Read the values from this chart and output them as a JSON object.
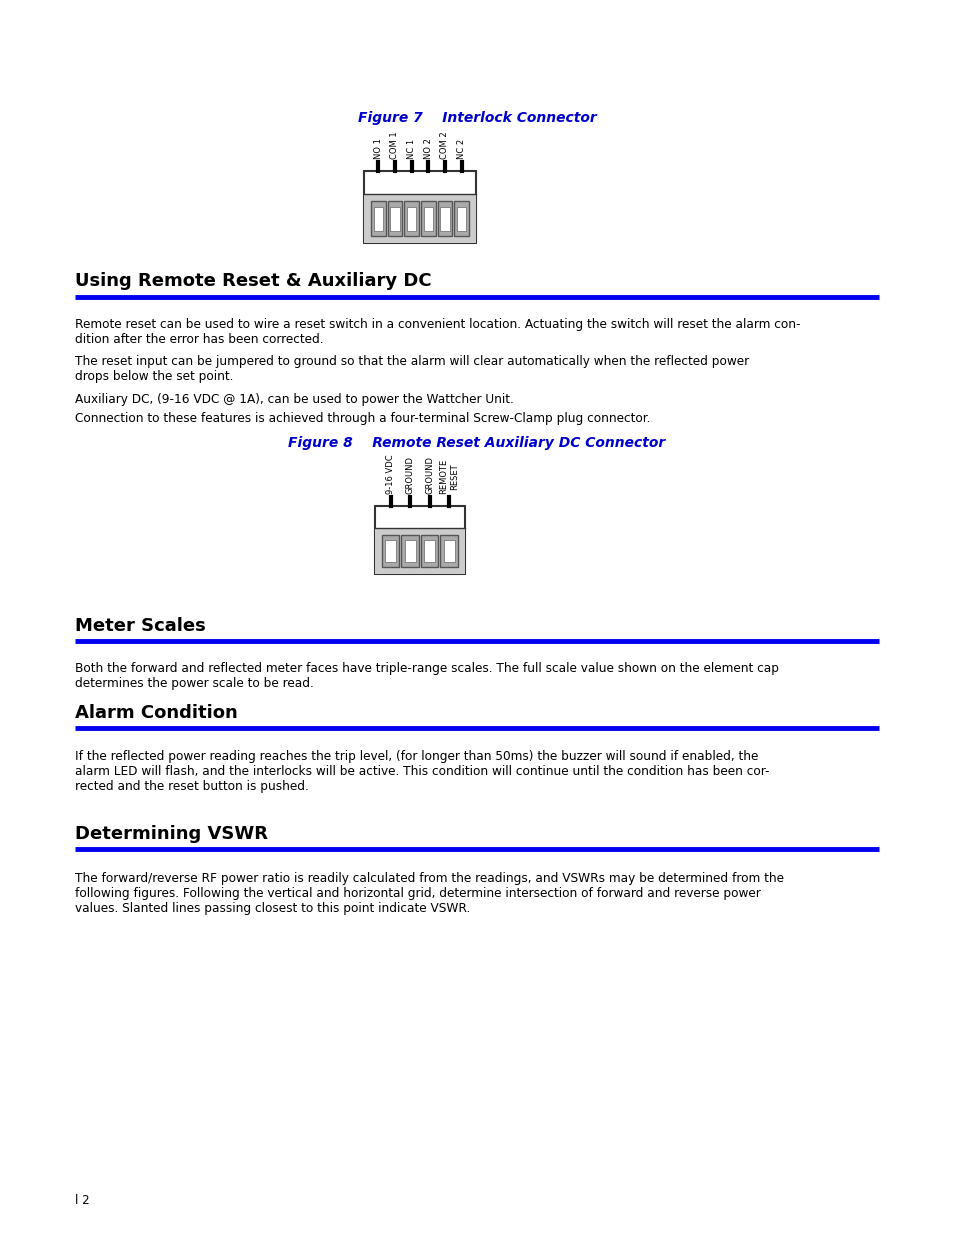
{
  "background_color": "#ffffff",
  "fig7_caption": "Figure 7    Interlock Connector",
  "fig8_caption": "Figure 8    Remote Reset Auxiliary DC Connector",
  "section1_title": "Using Remote Reset & Auxiliary DC",
  "section2_title": "Meter Scales",
  "section3_title": "Alarm Condition",
  "section4_title": "Determining VSWR",
  "caption_color": "#0000cc",
  "section_title_color": "#000000",
  "rule_color": "#0000ee",
  "body_text_color": "#000000",
  "fig7_labels": [
    "NO 1",
    "COM 1",
    "NC 1",
    "NO 2",
    "COM 2",
    "NC 2"
  ],
  "fig8_labels": [
    "9-16 VDC",
    "GROUND",
    "GROUND",
    "REMOTE\nRESET"
  ],
  "para1_line1": "Remote reset can be used to wire a reset switch in a convenient location. Actuating the switch will reset the alarm con-",
  "para1_line2": "dition after the error has been corrected.",
  "para2_line1": "The reset input can be jumpered to ground so that the alarm will clear automatically when the reflected power",
  "para2_line2": "drops below the set point.",
  "para3": "Auxiliary DC, (9-16 VDC @ 1A), can be used to power the Wattcher Unit.",
  "para4": "Connection to these features is achieved through a four-terminal Screw-Clamp plug connector.",
  "para5_line1": "Both the forward and reflected meter faces have triple-range scales. The full scale value shown on the element cap",
  "para5_line2": "determines the power scale to be read.",
  "para6_line1": "If the reflected power reading reaches the trip level, (for longer than 50ms) the buzzer will sound if enabled, the",
  "para6_line2": "alarm LED will flash, and the interlocks will be active. This condition will continue until the condition has been cor-",
  "para6_line3": "rected and the reset button is pushed.",
  "para7_line1": "The forward/reverse RF power ratio is readily calculated from the readings, and VSWRs may be determined from the",
  "para7_line2": "following figures. Following the vertical and horizontal grid, determine intersection of forward and reverse power",
  "para7_line3": "values. Slanted lines passing closest to this point indicate VSWR.",
  "page_number": "l 2"
}
